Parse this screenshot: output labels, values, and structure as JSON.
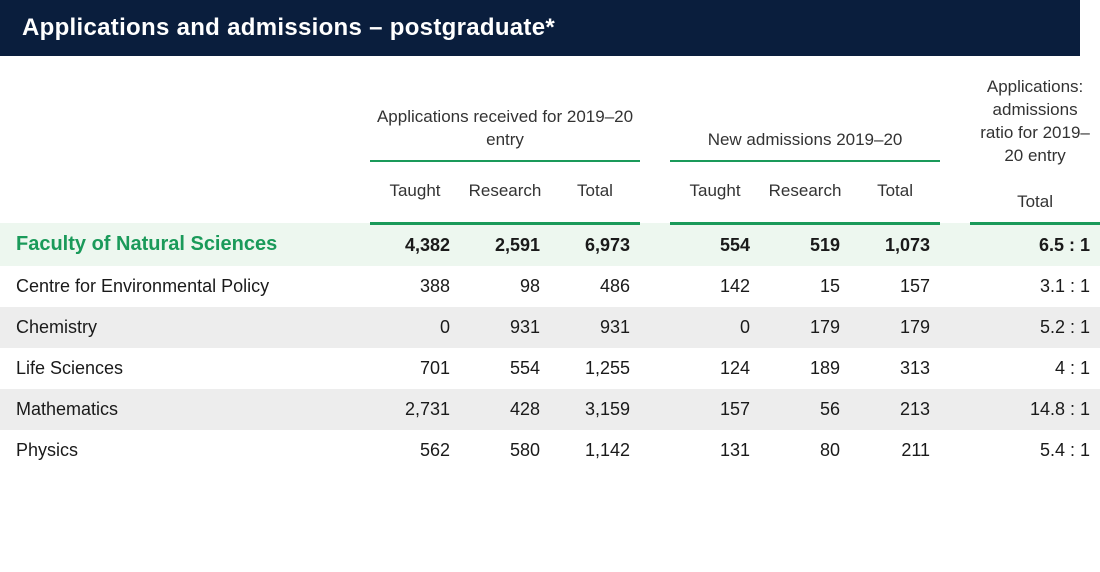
{
  "title": "Applications and admissions – postgraduate*",
  "colors": {
    "header_bg": "#0a1e3d",
    "header_fg": "#ffffff",
    "accent_green": "#1a9a5a",
    "faculty_row_bg": "#edf7ef",
    "alt_row_bg": "#ededed",
    "text": "#1a1a1a"
  },
  "group_headers": {
    "apps_received": "Applications received for  2019–20 entry",
    "new_admissions": "New admissions 2019–20",
    "ratio": "Applications: admissions ratio for 2019–20 entry"
  },
  "sub_headers": {
    "taught": "Taught",
    "research": "Research",
    "total": "Total"
  },
  "rows": [
    {
      "label": "Faculty of Natural Sciences",
      "apps_taught": "4,382",
      "apps_research": "2,591",
      "apps_total": "6,973",
      "adm_taught": "554",
      "adm_research": "519",
      "adm_total": "1,073",
      "ratio": "6.5 : 1",
      "type": "faculty"
    },
    {
      "label": "Centre for Environmental Policy",
      "apps_taught": "388",
      "apps_research": "98",
      "apps_total": "486",
      "adm_taught": "142",
      "adm_research": "15",
      "adm_total": "157",
      "ratio": "3.1 : 1",
      "type": "normal"
    },
    {
      "label": "Chemistry",
      "apps_taught": "0",
      "apps_research": "931",
      "apps_total": "931",
      "adm_taught": "0",
      "adm_research": "179",
      "adm_total": "179",
      "ratio": "5.2 : 1",
      "type": "alt"
    },
    {
      "label": "Life Sciences",
      "apps_taught": "701",
      "apps_research": "554",
      "apps_total": "1,255",
      "adm_taught": "124",
      "adm_research": "189",
      "adm_total": "313",
      "ratio": "4 : 1",
      "type": "normal"
    },
    {
      "label": "Mathematics",
      "apps_taught": "2,731",
      "apps_research": "428",
      "apps_total": "3,159",
      "adm_taught": "157",
      "adm_research": "56",
      "adm_total": "213",
      "ratio": "14.8 : 1",
      "type": "alt"
    },
    {
      "label": "Physics",
      "apps_taught": "562",
      "apps_research": "580",
      "apps_total": "1,142",
      "adm_taught": "131",
      "adm_research": "80",
      "adm_total": "211",
      "ratio": "5.4 : 1",
      "type": "normal"
    }
  ]
}
